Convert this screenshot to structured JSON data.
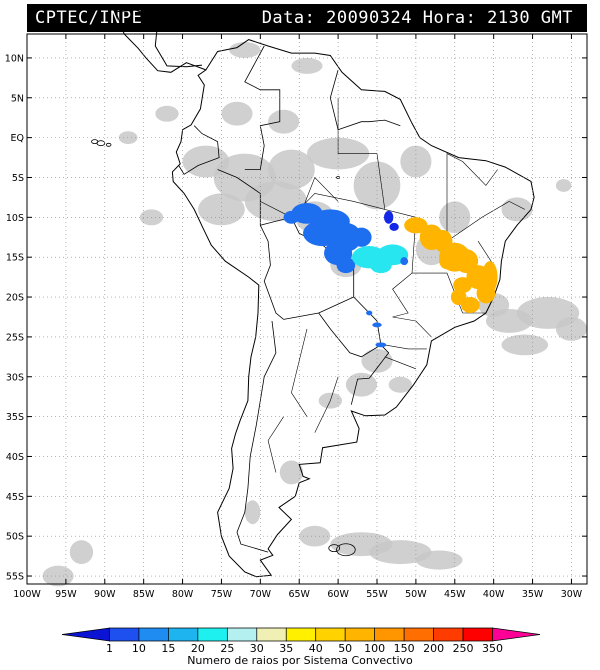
{
  "header": {
    "source": "CPTEC/INPE",
    "datetime": "Data: 20090324 Hora: 2130 GMT"
  },
  "map": {
    "lon_range": [
      -100,
      -28
    ],
    "lat_range": [
      -56,
      13
    ],
    "lat_ticks": [
      {
        "value": 10,
        "label": "10N"
      },
      {
        "value": 5,
        "label": "5N"
      },
      {
        "value": 0,
        "label": "EQ"
      },
      {
        "value": -5,
        "label": "5S"
      },
      {
        "value": -10,
        "label": "10S"
      },
      {
        "value": -15,
        "label": "15S"
      },
      {
        "value": -20,
        "label": "20S"
      },
      {
        "value": -25,
        "label": "25S"
      },
      {
        "value": -30,
        "label": "30S"
      },
      {
        "value": -35,
        "label": "35S"
      },
      {
        "value": -40,
        "label": "40S"
      },
      {
        "value": -45,
        "label": "45S"
      },
      {
        "value": -50,
        "label": "50S"
      },
      {
        "value": -55,
        "label": "55S"
      }
    ],
    "lon_ticks": [
      {
        "value": -100,
        "label": "100W"
      },
      {
        "value": -95,
        "label": "95W"
      },
      {
        "value": -90,
        "label": "90W"
      },
      {
        "value": -85,
        "label": "85W"
      },
      {
        "value": -80,
        "label": "80W"
      },
      {
        "value": -75,
        "label": "75W"
      },
      {
        "value": -70,
        "label": "70W"
      },
      {
        "value": -65,
        "label": "65W"
      },
      {
        "value": -60,
        "label": "60W"
      },
      {
        "value": -55,
        "label": "55W"
      },
      {
        "value": -50,
        "label": "50W"
      },
      {
        "value": -45,
        "label": "45W"
      },
      {
        "value": -40,
        "label": "40W"
      },
      {
        "value": -35,
        "label": "35W"
      },
      {
        "value": -30,
        "label": "30W"
      }
    ],
    "grid": "dotted",
    "colors": {
      "cloud": "#c8c8c8",
      "coast": "#000000",
      "blue_dark": "#1428e6",
      "blue": "#1e6ef0",
      "cyan": "#28e6f0",
      "amber": "#ffb400"
    }
  },
  "legend": {
    "title": "Numero de raios por Sistema Convectivo",
    "labels": [
      "1",
      "10",
      "15",
      "20",
      "25",
      "30",
      "35",
      "40",
      "50",
      "100",
      "150",
      "200",
      "250",
      "350"
    ],
    "colors": [
      "#0a14d2",
      "#1e50f0",
      "#1e8cf0",
      "#1eb4f0",
      "#1ef0f0",
      "#b4f0f0",
      "#f0f0b4",
      "#fff000",
      "#ffd200",
      "#ffb400",
      "#ff9600",
      "#ff6e00",
      "#ff3c00",
      "#ff0000",
      "#ff0096"
    ]
  }
}
